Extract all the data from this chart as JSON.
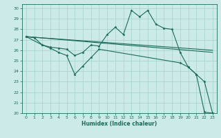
{
  "title": "",
  "xlabel": "Humidex (Indice chaleur)",
  "ylabel": "",
  "bg_color": "#cceae8",
  "grid_color": "#aad4d0",
  "line_color": "#1a6b5a",
  "xlim": [
    -0.5,
    23.5
  ],
  "ylim": [
    20,
    30.4
  ],
  "yticks": [
    20,
    21,
    22,
    23,
    24,
    25,
    26,
    27,
    28,
    29,
    30
  ],
  "xticks": [
    0,
    1,
    2,
    3,
    4,
    5,
    6,
    7,
    8,
    9,
    10,
    11,
    12,
    13,
    14,
    15,
    16,
    17,
    18,
    19,
    20,
    21,
    22,
    23
  ],
  "series": [
    {
      "x": [
        0,
        1,
        2,
        3,
        4,
        5,
        6,
        7,
        8,
        9,
        10,
        11,
        12,
        13,
        14,
        15,
        16,
        17,
        18,
        19,
        20,
        21,
        22,
        23
      ],
      "y": [
        27.3,
        27.2,
        26.5,
        26.3,
        26.2,
        26.1,
        25.5,
        25.8,
        26.5,
        26.4,
        27.5,
        28.2,
        27.5,
        29.8,
        29.2,
        29.8,
        28.5,
        28.1,
        28.0,
        25.8,
        24.4,
        23.7,
        23.0,
        20.0
      ],
      "marker": true
    },
    {
      "x": [
        0,
        2,
        3,
        4,
        5,
        6,
        7,
        8,
        9,
        19,
        20,
        21,
        22,
        23
      ],
      "y": [
        27.3,
        26.5,
        26.2,
        25.8,
        25.5,
        23.7,
        24.5,
        25.3,
        26.1,
        24.8,
        24.4,
        23.7,
        20.1,
        20.0
      ],
      "marker": true
    },
    {
      "x": [
        0,
        23
      ],
      "y": [
        27.3,
        26.0
      ],
      "marker": false
    },
    {
      "x": [
        0,
        23
      ],
      "y": [
        27.3,
        25.8
      ],
      "marker": false
    }
  ]
}
